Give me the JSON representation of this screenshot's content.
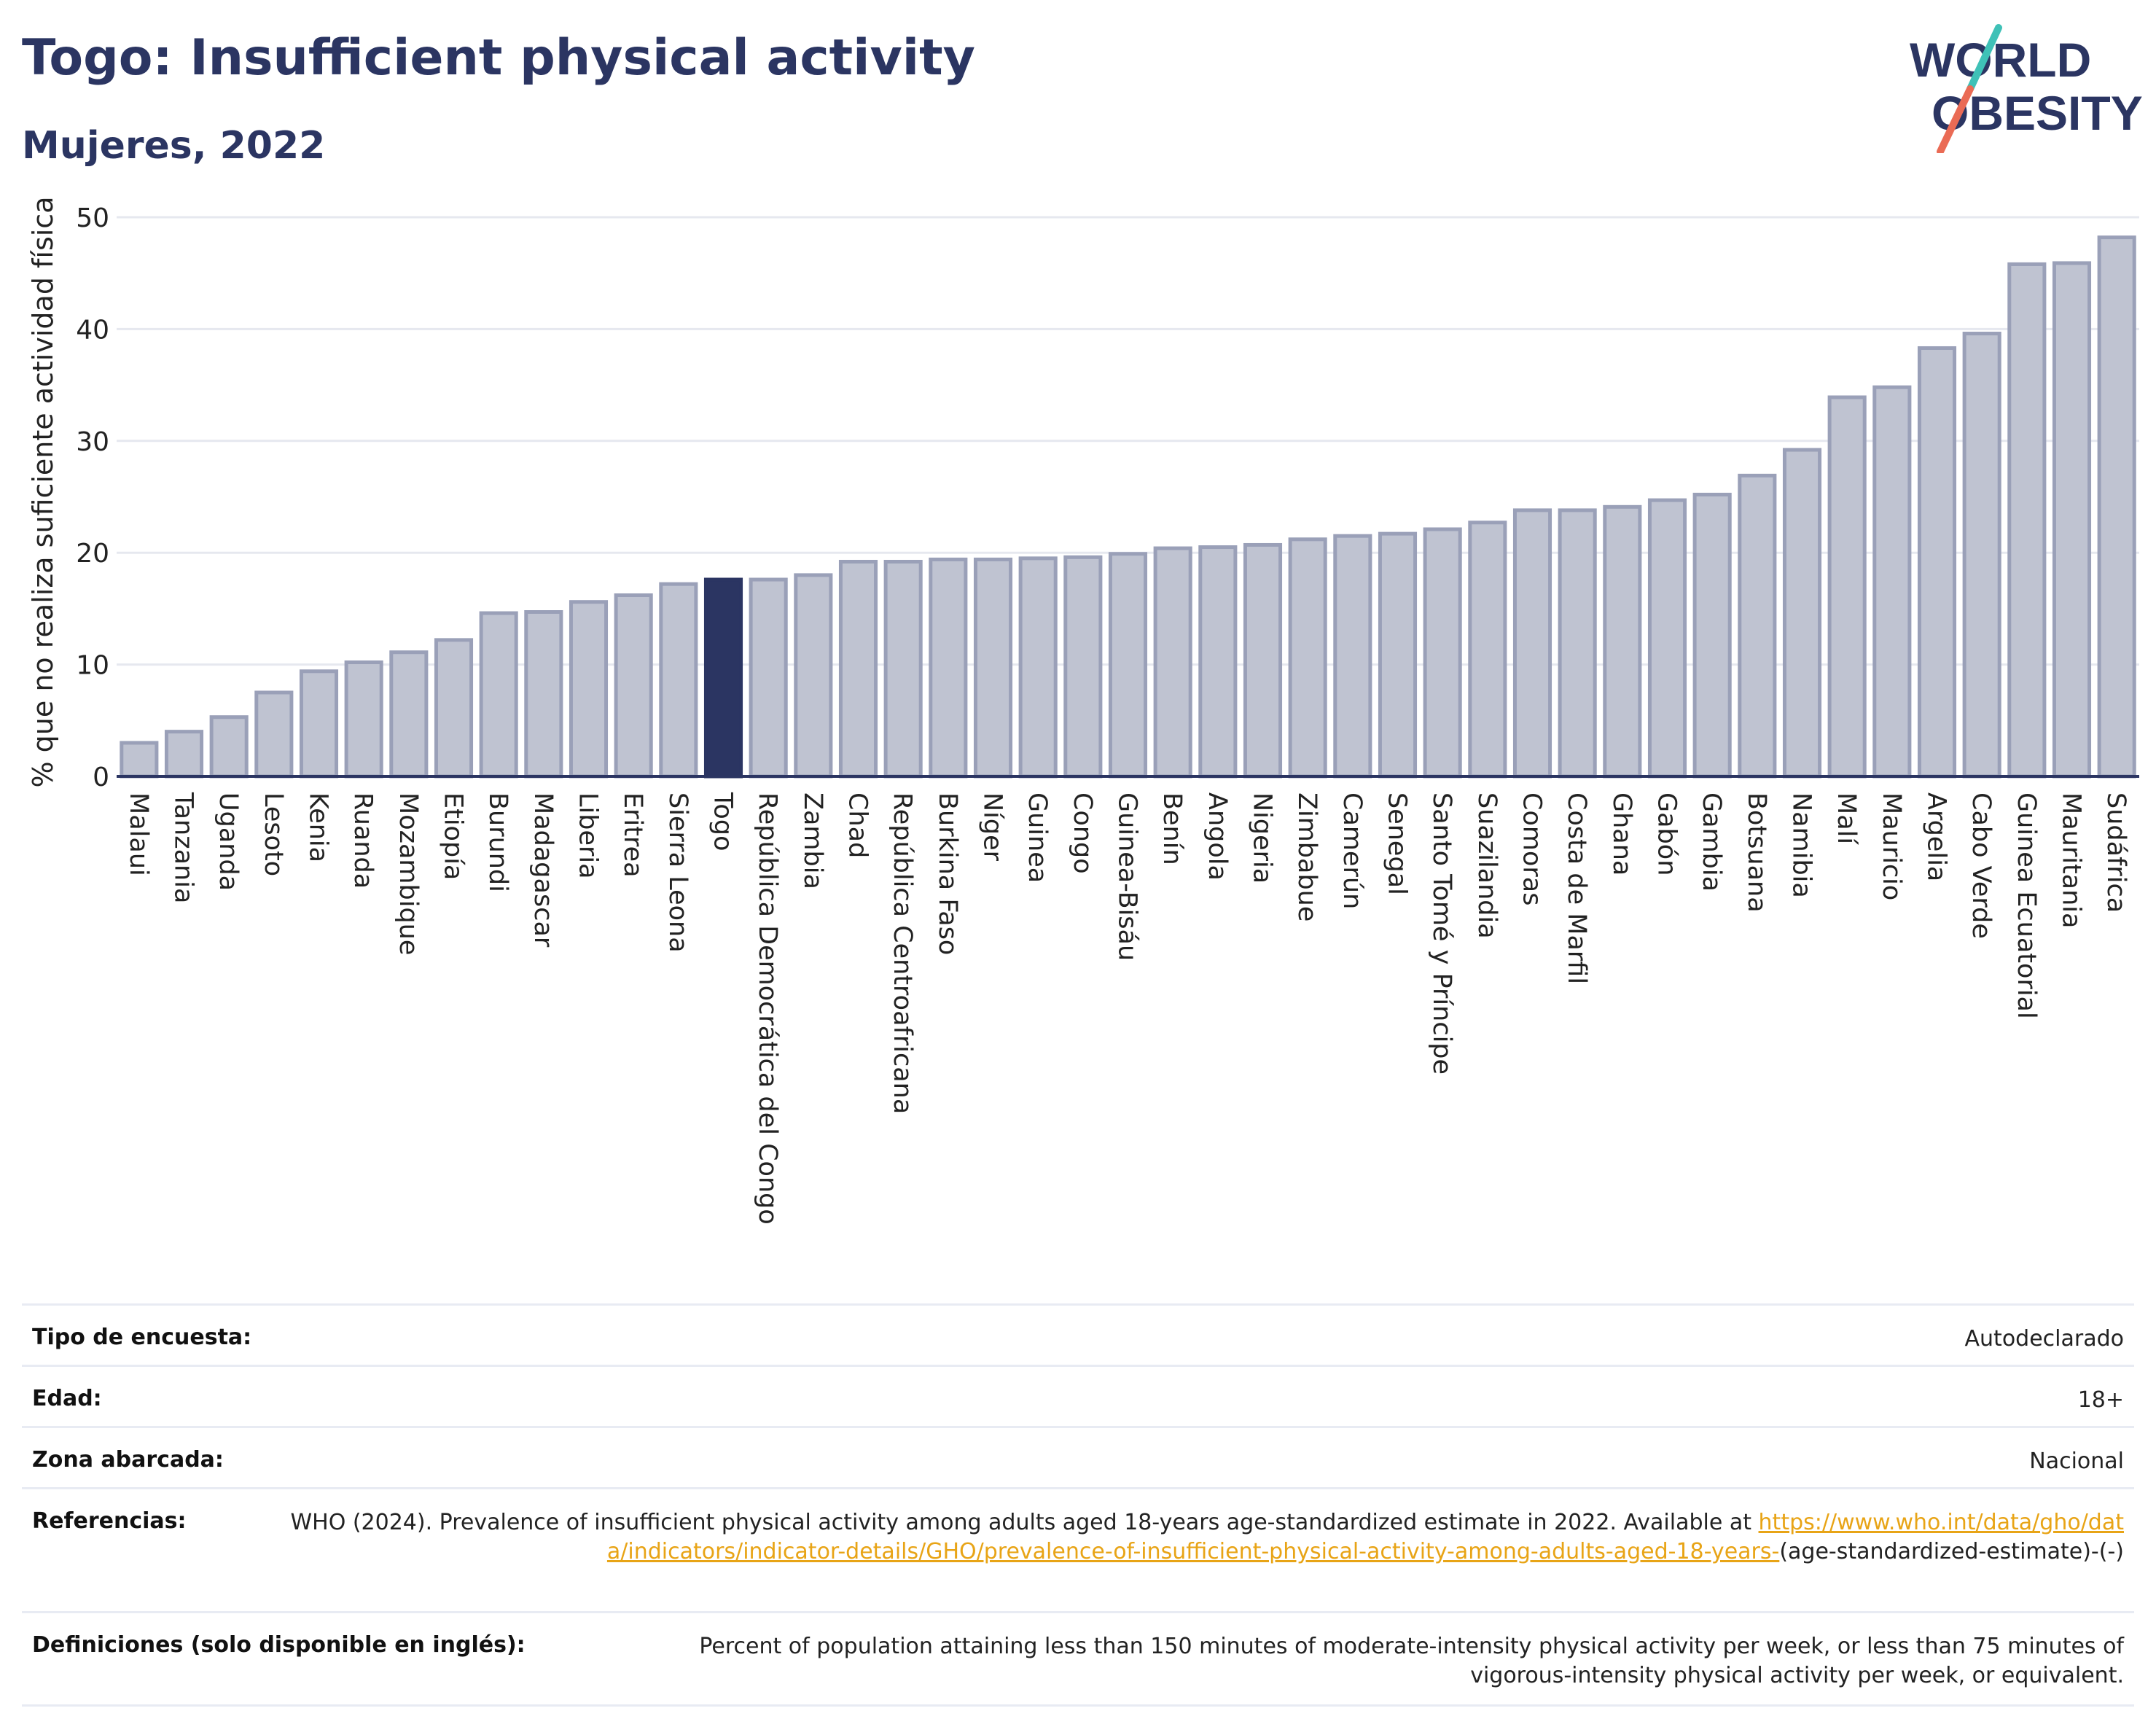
{
  "header": {
    "title": "Togo: Insufficient physical activity",
    "subtitle": "Mujeres, 2022"
  },
  "logo": {
    "line1": "WORLD",
    "line2": "OBESITY",
    "colors": {
      "text": "#2b3562",
      "slash_top": "#3fc1b7",
      "slash_bottom": "#ea6b55"
    }
  },
  "colors": {
    "bar": "#bfc3d1",
    "bar_stroke": "#9aa0b8",
    "highlight": "#2b3562",
    "text": "#2b3562",
    "grid": "#e6e8ef",
    "link": "#e8a416"
  },
  "chart_data": {
    "type": "bar",
    "ylabel": "% que no realiza suficiente actividad física",
    "ylim": [
      0,
      50
    ],
    "yticks": [
      0,
      10,
      20,
      30,
      40,
      50
    ],
    "grid": true,
    "highlight": "Togo",
    "categories": [
      "Malaui",
      "Tanzania",
      "Uganda",
      "Lesoto",
      "Kenia",
      "Ruanda",
      "Mozambique",
      "Etiopía",
      "Burundi",
      "Madagascar",
      "Liberia",
      "Eritrea",
      "Sierra Leona",
      "Togo",
      "República Democrática del Congo",
      "Zambia",
      "Chad",
      "República Centroafricana",
      "Burkina Faso",
      "Níger",
      "Guinea",
      "Congo",
      "Guinea-Bisáu",
      "Benín",
      "Angola",
      "Nigeria",
      "Zimbabue",
      "Camerún",
      "Senegal",
      "Santo Tomé y Príncipe",
      "Suazilandia",
      "Comoras",
      "Costa de Marfil",
      "Ghana",
      "Gabón",
      "Gambia",
      "Botsuana",
      "Namibia",
      "Malí",
      "Mauricio",
      "Argelia",
      "Cabo Verde",
      "Guinea Ecuatorial",
      "Mauritania",
      "Sudáfrica"
    ],
    "values": [
      3.0,
      4.0,
      5.3,
      7.5,
      9.4,
      10.2,
      11.1,
      12.2,
      14.6,
      14.7,
      15.6,
      16.2,
      17.2,
      17.6,
      17.6,
      18.0,
      19.2,
      19.2,
      19.4,
      19.4,
      19.5,
      19.6,
      19.9,
      20.4,
      20.5,
      20.7,
      21.2,
      21.5,
      21.7,
      22.1,
      22.7,
      23.8,
      23.8,
      24.1,
      24.7,
      25.2,
      26.9,
      29.2,
      33.9,
      34.8,
      38.3,
      39.6,
      45.8,
      45.9,
      48.2
    ]
  },
  "info": {
    "survey_label": "Tipo de encuesta:",
    "survey_value": "Autodeclarado",
    "age_label": "Edad:",
    "age_value": "18+",
    "area_label": "Zona abarcada:",
    "area_value": "Nacional",
    "ref_label": "Referencias:",
    "ref_text": "WHO (2024). Prevalence of insufficient physical activity among adults aged 18-years age-standardized estimate in 2022. Available at",
    "ref_link": "https://www.who.int/data/gho/data/indicators/indicator-details/GHO/prevalence-of-insufficient-physical-activity-among-adults-aged-18-years-",
    "ref_suffix": "(age-standardized-estimate)-(-)",
    "def_label": "Definiciones (solo disponible en inglés):",
    "def_text": "Percent of population attaining less than 150 minutes of moderate-intensity physical activity per week, or less than 75 minutes of vigorous-intensity physical activity per week, or equivalent."
  }
}
